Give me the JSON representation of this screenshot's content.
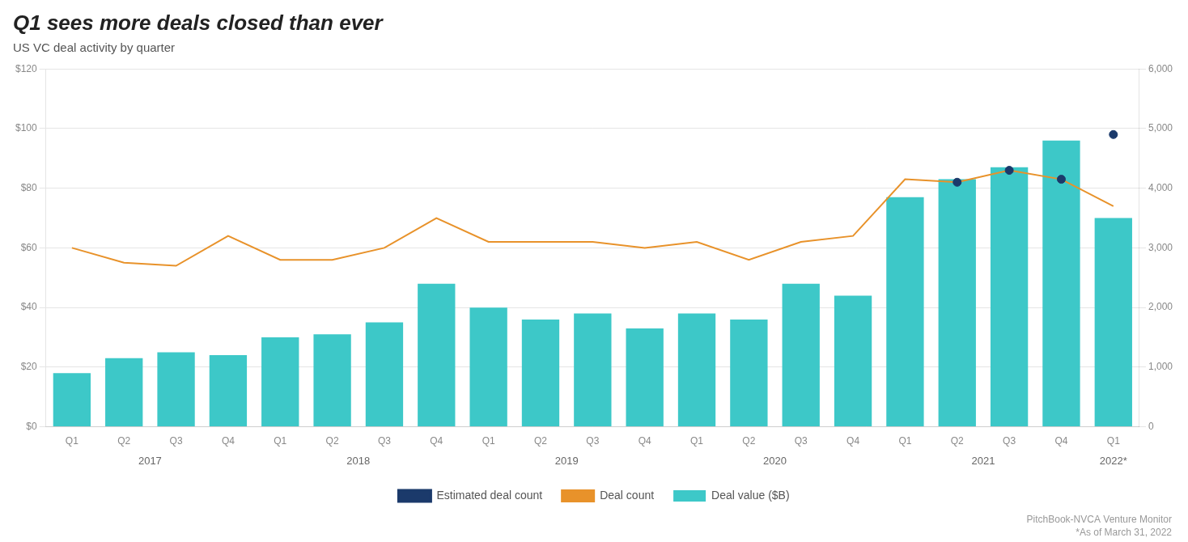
{
  "chart_data": {
    "type": "bar",
    "title": "Q1 sees more deals closed than ever",
    "subtitle": "US VC deal activity by quarter",
    "categories": [
      "Q1",
      "Q2",
      "Q3",
      "Q4",
      "Q1",
      "Q2",
      "Q3",
      "Q4",
      "Q1",
      "Q2",
      "Q3",
      "Q4",
      "Q1",
      "Q2",
      "Q3",
      "Q4",
      "Q1",
      "Q2",
      "Q3",
      "Q4",
      "Q1"
    ],
    "x_group_labels": [
      "2017",
      "2018",
      "2019",
      "2020",
      "2021",
      "2022*"
    ],
    "series": [
      {
        "name": "Deal value ($B)",
        "type": "bar",
        "color": "#3DC8C8",
        "values": [
          18,
          23,
          25,
          24,
          30,
          31,
          35,
          48,
          40,
          36,
          38,
          33,
          38,
          36,
          48,
          44,
          77,
          83,
          87,
          96,
          70
        ]
      },
      {
        "name": "Deal count",
        "type": "line",
        "color": "#E8922A",
        "axis": "y2",
        "values": [
          3000,
          2750,
          2700,
          3200,
          2800,
          2800,
          3000,
          3500,
          3100,
          3100,
          3100,
          3000,
          3100,
          2800,
          3100,
          3200,
          4150,
          4100,
          4300,
          4150,
          3700
        ]
      },
      {
        "name": "Estimated deal count",
        "type": "scatter",
        "color": "#1B3A6B",
        "axis": "y2",
        "marker": "circle",
        "values": [
          null,
          null,
          null,
          null,
          null,
          null,
          null,
          null,
          null,
          null,
          null,
          null,
          null,
          null,
          null,
          null,
          null,
          4100,
          4300,
          4150,
          4900
        ]
      }
    ],
    "ylim": [
      0,
      120
    ],
    "yticks": [
      {
        "value": 0,
        "label": "$0"
      },
      {
        "value": 20,
        "label": "$20"
      },
      {
        "value": 40,
        "label": "$40"
      },
      {
        "value": 60,
        "label": "$60"
      },
      {
        "value": 80,
        "label": "$80"
      },
      {
        "value": 100,
        "label": "$100"
      },
      {
        "value": 120,
        "label": "$120"
      }
    ],
    "y2lim": [
      0,
      6000
    ],
    "y2ticks": [
      0,
      {
        "value": 1000,
        "label": "1,000"
      },
      {
        "value": 2000,
        "label": "2,000"
      },
      {
        "value": 3000,
        "label": "3,000"
      },
      {
        "value": 4000,
        "label": "4,000"
      },
      {
        "value": 5000,
        "label": "5,000"
      },
      {
        "value": 6000,
        "label": "6,000"
      }
    ],
    "grid": true,
    "legend": "bottom",
    "annotations": [
      "PitchBook-NVCA Venture Monitor",
      "*As of March 31, 2022"
    ]
  }
}
